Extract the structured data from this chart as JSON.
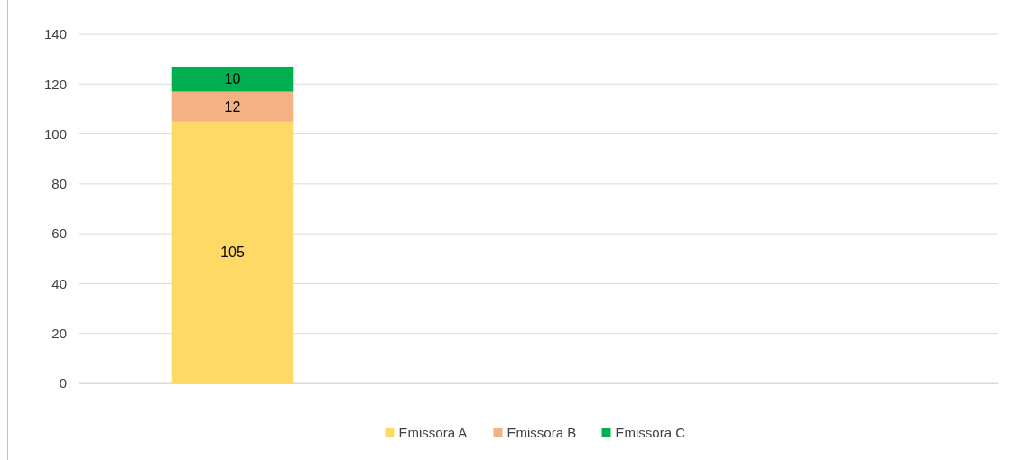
{
  "chart_data": {
    "type": "bar",
    "stacked": true,
    "categories": [
      null,
      null,
      null
    ],
    "series": [
      {
        "name": "Emissora A",
        "color": "#ffd966",
        "values": [
          105,
          null,
          null
        ]
      },
      {
        "name": "Emissora B",
        "color": "#f4b183",
        "values": [
          12,
          null,
          null
        ]
      },
      {
        "name": "Emissora C",
        "color": "#00b050",
        "values": [
          10,
          null,
          null
        ]
      }
    ],
    "ylim": [
      0,
      140
    ],
    "yticks": [
      0,
      20,
      40,
      60,
      80,
      100,
      120,
      140
    ],
    "grid": "y",
    "legend": "bottom",
    "data_labels": true
  }
}
